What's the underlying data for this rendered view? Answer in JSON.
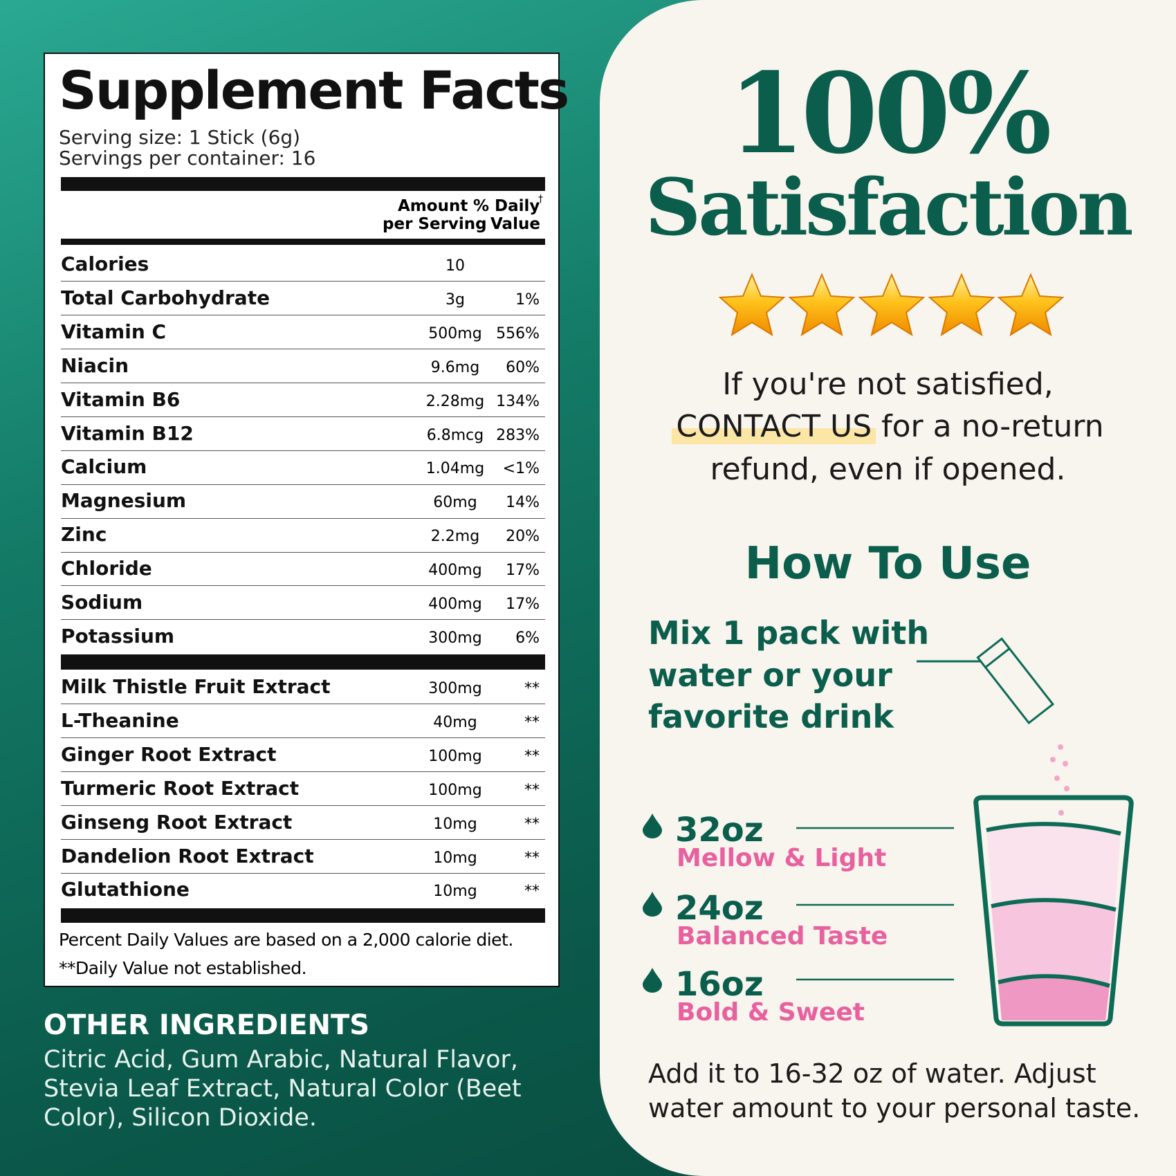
{
  "facts": {
    "title": "Supplement Facts",
    "serving_size": "Serving size: 1 Stick (6g)",
    "servings": "Servings per container: 16",
    "header_amount_1": "Amount",
    "header_amount_2": "per Serving",
    "header_dv_1": "% Daily",
    "header_dv_2": "Value",
    "dagger": "†",
    "rows": [
      [
        "Calories",
        "10",
        ""
      ],
      [
        "Total Carbohydrate",
        "3g",
        "1%"
      ],
      [
        "Vitamin C",
        "500mg",
        "556%"
      ],
      [
        "Niacin",
        "9.6mg",
        "60%"
      ],
      [
        "Vitamin B6",
        "2.28mg",
        "134%"
      ],
      [
        "Vitamin B12",
        "6.8mcg",
        "283%"
      ],
      [
        "Calcium",
        "1.04mg",
        "<1%"
      ],
      [
        "Magnesium",
        "60mg",
        "14%"
      ],
      [
        "Zinc",
        "2.2mg",
        "20%"
      ],
      [
        "Chloride",
        "400mg",
        "17%"
      ],
      [
        "Sodium",
        "400mg",
        "17%"
      ],
      [
        "Potassium",
        "300mg",
        "6%"
      ]
    ],
    "extra_rows": [
      [
        "Milk Thistle Fruit Extract",
        "300mg",
        "**"
      ],
      [
        "L-Theanine",
        "40mg",
        "**"
      ],
      [
        "Ginger Root Extract",
        "100mg",
        "**"
      ],
      [
        "Turmeric Root Extract",
        "100mg",
        "**"
      ],
      [
        "Ginseng Root Extract",
        "10mg",
        "**"
      ],
      [
        "Dandelion Root Extract",
        "10mg",
        "**"
      ],
      [
        "Glutathione",
        "10mg",
        "**"
      ]
    ],
    "footnote_1": "Percent Daily Values are based on a 2,000 calorie diet.",
    "footnote_2": "**Daily Value not established."
  },
  "other_ingredients": {
    "title": "OTHER INGREDIENTS",
    "text": "Citric Acid, Gum Arabic, Natural Flavor, Stevia Leaf Extract, Natural Color (Beet Color), Silicon Dioxide."
  },
  "guarantee": {
    "headline_1": "100%",
    "headline_2": "Satisfaction",
    "line_1": "If you're not satisfied,",
    "highlight": "CONTACT US",
    "line_2": "for a no-return",
    "line_3": "refund, even if opened."
  },
  "how_to_use": {
    "title": "How To Use",
    "mix_lines": [
      "Mix 1 pack with",
      "water or your",
      "favorite drink"
    ],
    "levels": [
      {
        "amount": "32oz",
        "label": "Mellow & Light"
      },
      {
        "amount": "24oz",
        "label": "Balanced Taste"
      },
      {
        "amount": "16oz",
        "label": "Bold & Sweet"
      }
    ],
    "note_lines": [
      "Add it to 16-32 oz of water. Adjust",
      "water amount to your personal taste."
    ]
  }
}
